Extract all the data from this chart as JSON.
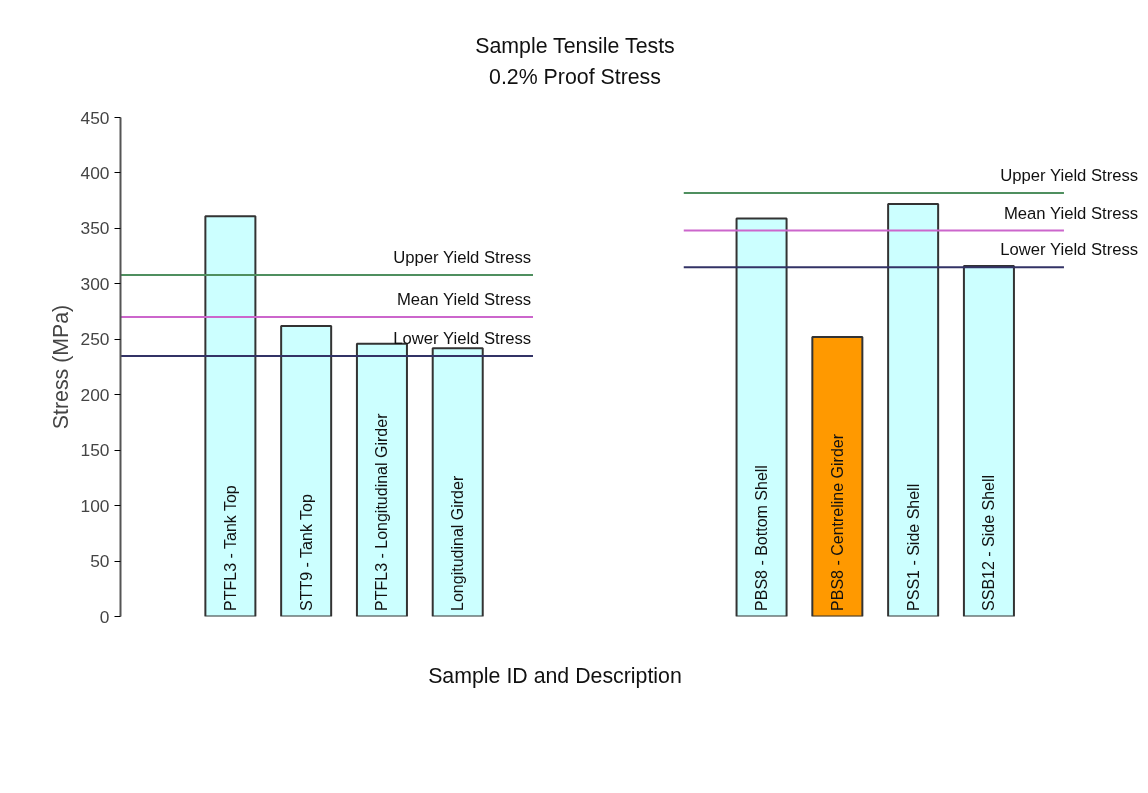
{
  "chart_data": [
    {
      "type": "bar",
      "title": "Sample Tensile Tests",
      "subtitle": "0.2% Proof Stress",
      "xlabel": "Sample ID and Description",
      "ylabel": "Stress (MPa)",
      "categories": [
        "PTFL3 - Tank Top",
        "STT9 - Tank Top",
        "PTFL3 - Longitudinal Girder",
        "Longitudinal Girder"
      ],
      "values": [
        361,
        262,
        246,
        242
      ],
      "colors": [
        "#ccffff",
        "#ccffff",
        "#ccffff",
        "#ccffff"
      ],
      "ref_lines": [
        {
          "axis": "y",
          "value": 308,
          "label": "Upper Yield Stress",
          "color": "#4f8f5f"
        },
        {
          "axis": "y",
          "value": 270,
          "label": "Mean Yield Stress",
          "color": "#cc66cc"
        },
        {
          "axis": "y",
          "value": 235,
          "label": "Lower Yield Stress",
          "color": "#333366"
        }
      ],
      "ylim": [
        0,
        450
      ],
      "yticks": [
        0,
        50,
        100,
        150,
        200,
        250,
        300,
        350,
        400,
        450
      ]
    },
    {
      "type": "bar",
      "categories": [
        "PBS8 - Bottom Shell",
        "PBS8 - Centreline Girder",
        "PSS1 - Side Shell",
        "SSB12 - Side Shell"
      ],
      "values": [
        359,
        252,
        372,
        316
      ],
      "colors": [
        "#ccffff",
        "#ff9900",
        "#ccffff",
        "#ccffff"
      ],
      "ref_lines": [
        {
          "axis": "y",
          "value": 382,
          "label": "Upper Yield Stress",
          "color": "#4f8f5f"
        },
        {
          "axis": "y",
          "value": 348,
          "label": "Mean Yield Stress",
          "color": "#cc66cc"
        },
        {
          "axis": "y",
          "value": 315,
          "label": "Lower Yield Stress",
          "color": "#333366"
        }
      ],
      "ylim": [
        0,
        450
      ],
      "yticks": [
        0,
        50,
        100,
        150,
        200,
        250,
        300,
        350,
        400,
        450
      ],
      "tick_labels": "x"
    }
  ]
}
